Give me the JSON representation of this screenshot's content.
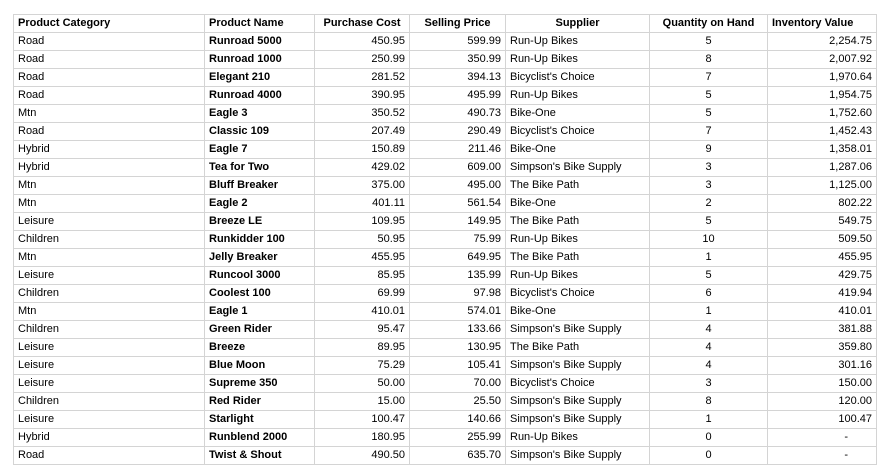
{
  "headers": {
    "category": "Product Category",
    "name": "Product Name",
    "cost": "Purchase Cost",
    "price": "Selling Price",
    "supplier": "Supplier",
    "qty": "Quantity on Hand",
    "value": "Inventory Value"
  },
  "rows": [
    {
      "category": "Road",
      "name": "Runroad 5000",
      "cost": "450.95",
      "price": "599.99",
      "supplier": "Run-Up Bikes",
      "qty": "5",
      "value": "2,254.75"
    },
    {
      "category": "Road",
      "name": "Runroad 1000",
      "cost": "250.99",
      "price": "350.99",
      "supplier": "Run-Up Bikes",
      "qty": "8",
      "value": "2,007.92"
    },
    {
      "category": "Road",
      "name": "Elegant 210",
      "cost": "281.52",
      "price": "394.13",
      "supplier": "Bicyclist's Choice",
      "qty": "7",
      "value": "1,970.64"
    },
    {
      "category": "Road",
      "name": "Runroad 4000",
      "cost": "390.95",
      "price": "495.99",
      "supplier": "Run-Up Bikes",
      "qty": "5",
      "value": "1,954.75"
    },
    {
      "category": "Mtn",
      "name": "Eagle 3",
      "cost": "350.52",
      "price": "490.73",
      "supplier": "Bike-One",
      "qty": "5",
      "value": "1,752.60"
    },
    {
      "category": "Road",
      "name": "Classic 109",
      "cost": "207.49",
      "price": "290.49",
      "supplier": "Bicyclist's Choice",
      "qty": "7",
      "value": "1,452.43"
    },
    {
      "category": "Hybrid",
      "name": "Eagle 7",
      "cost": "150.89",
      "price": "211.46",
      "supplier": "Bike-One",
      "qty": "9",
      "value": "1,358.01"
    },
    {
      "category": "Hybrid",
      "name": "Tea for Two",
      "cost": "429.02",
      "price": "609.00",
      "supplier": "Simpson's Bike Supply",
      "qty": "3",
      "value": "1,287.06"
    },
    {
      "category": "Mtn",
      "name": "Bluff Breaker",
      "cost": "375.00",
      "price": "495.00",
      "supplier": "The Bike Path",
      "qty": "3",
      "value": "1,125.00"
    },
    {
      "category": "Mtn",
      "name": "Eagle 2",
      "cost": "401.11",
      "price": "561.54",
      "supplier": "Bike-One",
      "qty": "2",
      "value": "802.22"
    },
    {
      "category": "Leisure",
      "name": "Breeze LE",
      "cost": "109.95",
      "price": "149.95",
      "supplier": "The Bike Path",
      "qty": "5",
      "value": "549.75"
    },
    {
      "category": "Children",
      "name": "Runkidder 100",
      "cost": "50.95",
      "price": "75.99",
      "supplier": "Run-Up Bikes",
      "qty": "10",
      "value": "509.50"
    },
    {
      "category": "Mtn",
      "name": "Jelly Breaker",
      "cost": "455.95",
      "price": "649.95",
      "supplier": "The Bike Path",
      "qty": "1",
      "value": "455.95"
    },
    {
      "category": "Leisure",
      "name": "Runcool 3000",
      "cost": "85.95",
      "price": "135.99",
      "supplier": "Run-Up Bikes",
      "qty": "5",
      "value": "429.75"
    },
    {
      "category": "Children",
      "name": "Coolest 100",
      "cost": "69.99",
      "price": "97.98",
      "supplier": "Bicyclist's Choice",
      "qty": "6",
      "value": "419.94"
    },
    {
      "category": "Mtn",
      "name": "Eagle 1",
      "cost": "410.01",
      "price": "574.01",
      "supplier": "Bike-One",
      "qty": "1",
      "value": "410.01"
    },
    {
      "category": "Children",
      "name": "Green Rider",
      "cost": "95.47",
      "price": "133.66",
      "supplier": "Simpson's Bike Supply",
      "qty": "4",
      "value": "381.88"
    },
    {
      "category": "Leisure",
      "name": "Breeze",
      "cost": "89.95",
      "price": "130.95",
      "supplier": "The Bike Path",
      "qty": "4",
      "value": "359.80"
    },
    {
      "category": "Leisure",
      "name": "Blue Moon",
      "cost": "75.29",
      "price": "105.41",
      "supplier": "Simpson's Bike Supply",
      "qty": "4",
      "value": "301.16"
    },
    {
      "category": "Leisure",
      "name": "Supreme 350",
      "cost": "50.00",
      "price": "70.00",
      "supplier": "Bicyclist's Choice",
      "qty": "3",
      "value": "150.00"
    },
    {
      "category": "Children",
      "name": "Red Rider",
      "cost": "15.00",
      "price": "25.50",
      "supplier": "Simpson's Bike Supply",
      "qty": "8",
      "value": "120.00"
    },
    {
      "category": "Leisure",
      "name": "Starlight",
      "cost": "100.47",
      "price": "140.66",
      "supplier": "Simpson's Bike Supply",
      "qty": "1",
      "value": "100.47"
    },
    {
      "category": "Hybrid",
      "name": "Runblend 2000",
      "cost": "180.95",
      "price": "255.99",
      "supplier": "Run-Up Bikes",
      "qty": "0",
      "value": "-"
    },
    {
      "category": "Road",
      "name": "Twist & Shout",
      "cost": "490.50",
      "price": "635.70",
      "supplier": "Simpson's Bike Supply",
      "qty": "0",
      "value": "-"
    }
  ]
}
